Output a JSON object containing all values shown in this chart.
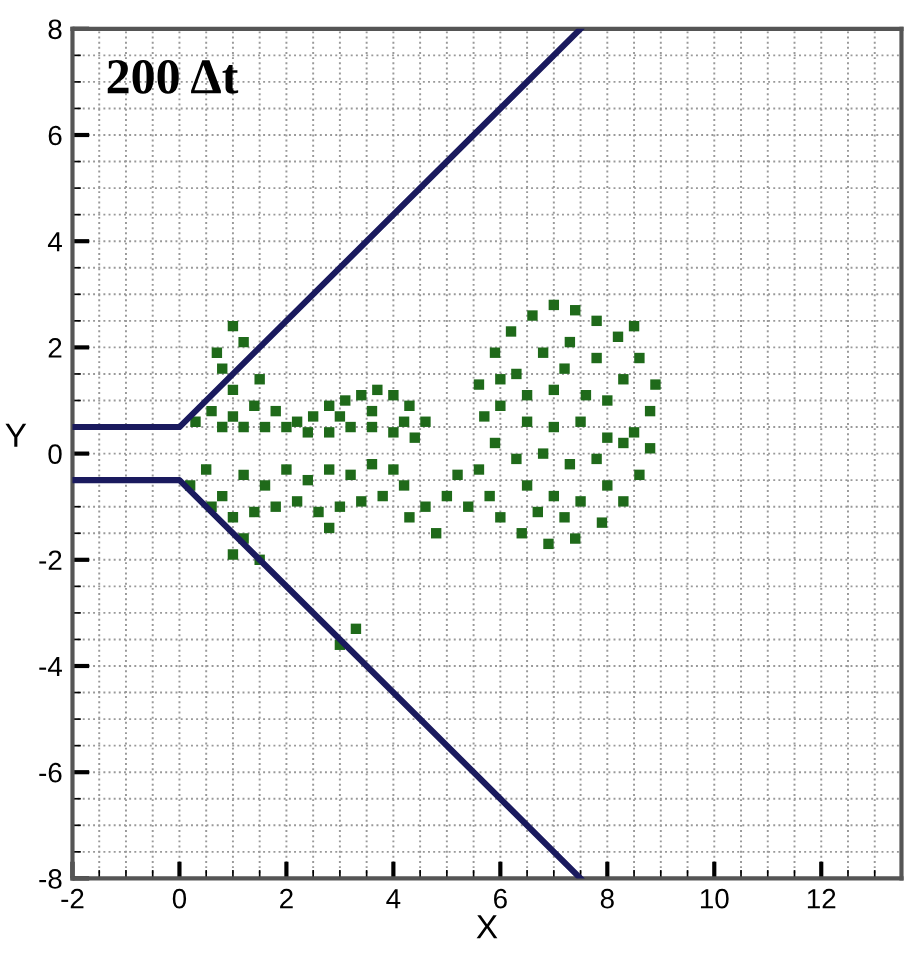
{
  "chart_data": {
    "type": "scatter",
    "title": "200 Δt",
    "xlabel": "X",
    "ylabel": "Y",
    "xlim": [
      -2,
      13.5
    ],
    "ylim": [
      -8,
      8
    ],
    "xticks": [
      -2,
      0,
      2,
      4,
      6,
      8,
      10,
      12
    ],
    "yticks": [
      -8,
      -6,
      -4,
      -2,
      0,
      2,
      4,
      6,
      8
    ],
    "grid": true,
    "series": [
      {
        "type": "line",
        "color": "#1a1a5e",
        "x": [
          -2,
          0,
          7.5
        ],
        "values": [
          0.5,
          0.5,
          8
        ]
      },
      {
        "type": "line",
        "color": "#1a1a5e",
        "x": [
          -2,
          0,
          7.5
        ],
        "values": [
          -0.5,
          -0.5,
          -8
        ]
      },
      {
        "color": "#1f6a1a",
        "marker": "square",
        "x": [
          0.3,
          0.6,
          1.0,
          1.4,
          1.8,
          2.2,
          2.5,
          2.8,
          3.1,
          3.4,
          3.7,
          4.0,
          4.3,
          4.6,
          4.4,
          4.0,
          3.6,
          3.2,
          2.8,
          2.4,
          2.0,
          1.6,
          1.2,
          0.8,
          3.0,
          3.6,
          4.2,
          1.0,
          0.8,
          1.2,
          1.0,
          0.7,
          1.5,
          0.2,
          0.5,
          0.8,
          1.2,
          1.6,
          2.0,
          2.4,
          2.8,
          3.2,
          3.6,
          4.0,
          4.2,
          3.8,
          3.4,
          3.0,
          2.6,
          2.2,
          1.8,
          1.4,
          1.0,
          0.6,
          1.2,
          1.5,
          1.0,
          2.8,
          3.3,
          3.0,
          4.3,
          4.8,
          5.0,
          4.6,
          5.6,
          5.9,
          6.2,
          6.6,
          7.0,
          7.4,
          7.8,
          8.2,
          8.6,
          8.9,
          8.8,
          8.5,
          8.0,
          7.5,
          7.0,
          6.5,
          6.0,
          5.7,
          6.3,
          6.8,
          7.3,
          7.8,
          8.3,
          7.0,
          7.6,
          6.5,
          8.0,
          7.2,
          6.0,
          8.5,
          5.6,
          5.8,
          6.0,
          6.4,
          6.9,
          7.4,
          7.9,
          8.3,
          8.6,
          8.8,
          8.3,
          7.8,
          7.3,
          6.8,
          6.3,
          5.9,
          6.5,
          7.0,
          7.5,
          8.0,
          6.7,
          7.2,
          5.4,
          5.2
        ],
        "values": [
          0.6,
          0.8,
          0.7,
          0.9,
          0.8,
          0.6,
          0.7,
          0.9,
          1.0,
          1.1,
          1.2,
          1.1,
          0.9,
          0.6,
          0.3,
          0.4,
          0.5,
          0.5,
          0.4,
          0.4,
          0.5,
          0.5,
          0.5,
          0.5,
          0.7,
          0.8,
          0.6,
          1.2,
          1.6,
          2.1,
          2.4,
          1.9,
          1.4,
          -0.6,
          -0.3,
          -0.8,
          -0.4,
          -0.6,
          -0.3,
          -0.5,
          -0.3,
          -0.4,
          -0.2,
          -0.3,
          -0.6,
          -0.8,
          -0.9,
          -1.0,
          -1.1,
          -0.9,
          -1.0,
          -1.1,
          -1.2,
          -1.0,
          -1.6,
          -2.0,
          -1.9,
          -1.4,
          -3.3,
          -3.6,
          -1.2,
          -1.5,
          -0.8,
          -1.0,
          1.3,
          1.9,
          2.3,
          2.6,
          2.8,
          2.7,
          2.5,
          2.2,
          1.8,
          1.3,
          0.8,
          0.4,
          0.3,
          0.6,
          0.5,
          0.6,
          0.9,
          0.7,
          1.5,
          1.9,
          2.1,
          1.8,
          1.4,
          1.2,
          1.1,
          1.1,
          1.0,
          1.6,
          1.4,
          2.4,
          -0.3,
          -0.8,
          -1.2,
          -1.5,
          -1.7,
          -1.6,
          -1.3,
          -0.9,
          -0.4,
          0.1,
          0.2,
          -0.1,
          -0.2,
          0.0,
          -0.1,
          0.2,
          -0.6,
          -0.8,
          -0.9,
          -0.6,
          -1.1,
          -1.2,
          -1.0,
          -0.4
        ]
      }
    ]
  }
}
